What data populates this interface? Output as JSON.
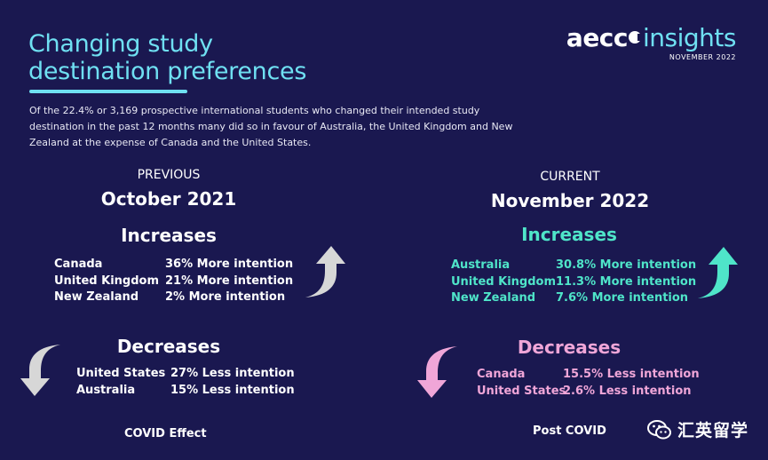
{
  "title": "Changing study destination preferences",
  "logo": {
    "brand": "aecc",
    "product": "insights",
    "date": "NOVEMBER 2022"
  },
  "intro": "Of the 22.4% or 3,169 prospective international students who changed their intended study destination in the past 12 months many did so in favour of Australia, the United Kingdom and New Zealand at the expense of Canada and the United States.",
  "previous": {
    "label": "PREVIOUS",
    "period": "October 2021",
    "increases_title": "Increases",
    "increases": [
      {
        "country": "Canada",
        "value": "36% More intention"
      },
      {
        "country": "United Kingdom",
        "value": "21% More intention"
      },
      {
        "country": "New Zealand",
        "value": "2% More intention"
      }
    ],
    "decreases_title": "Decreases",
    "decreases": [
      {
        "country": "United States",
        "value": "27% Less intention"
      },
      {
        "country": "Australia",
        "value": "15% Less intention"
      }
    ],
    "footer": "COVID Effect"
  },
  "current": {
    "label": "CURRENT",
    "period": "November 2022",
    "increases_title": "Increases",
    "increases": [
      {
        "country": "Australia",
        "value": "30.8% More intention"
      },
      {
        "country": "United Kingdom",
        "value": "11.3% More intention"
      },
      {
        "country": "New Zealand",
        "value": "7.6% More intention"
      }
    ],
    "decreases_title": "Decreases",
    "decreases": [
      {
        "country": "Canada",
        "value": "15.5% Less intention"
      },
      {
        "country": "United States",
        "value": "2.6% Less intention"
      }
    ],
    "footer": "Post COVID"
  },
  "watermark": "汇英留学",
  "colors": {
    "background": "#1a1850",
    "accent_cyan": "#6fe0f2",
    "increase_teal": "#4fe5c9",
    "decrease_pink": "#f0a6d8",
    "arrow_grey": "#d7d7d7"
  },
  "icons": {
    "increase_arrow": "curved-up-arrow-icon",
    "decrease_arrow": "curved-down-arrow-icon",
    "watermark": "wechat-icon"
  }
}
